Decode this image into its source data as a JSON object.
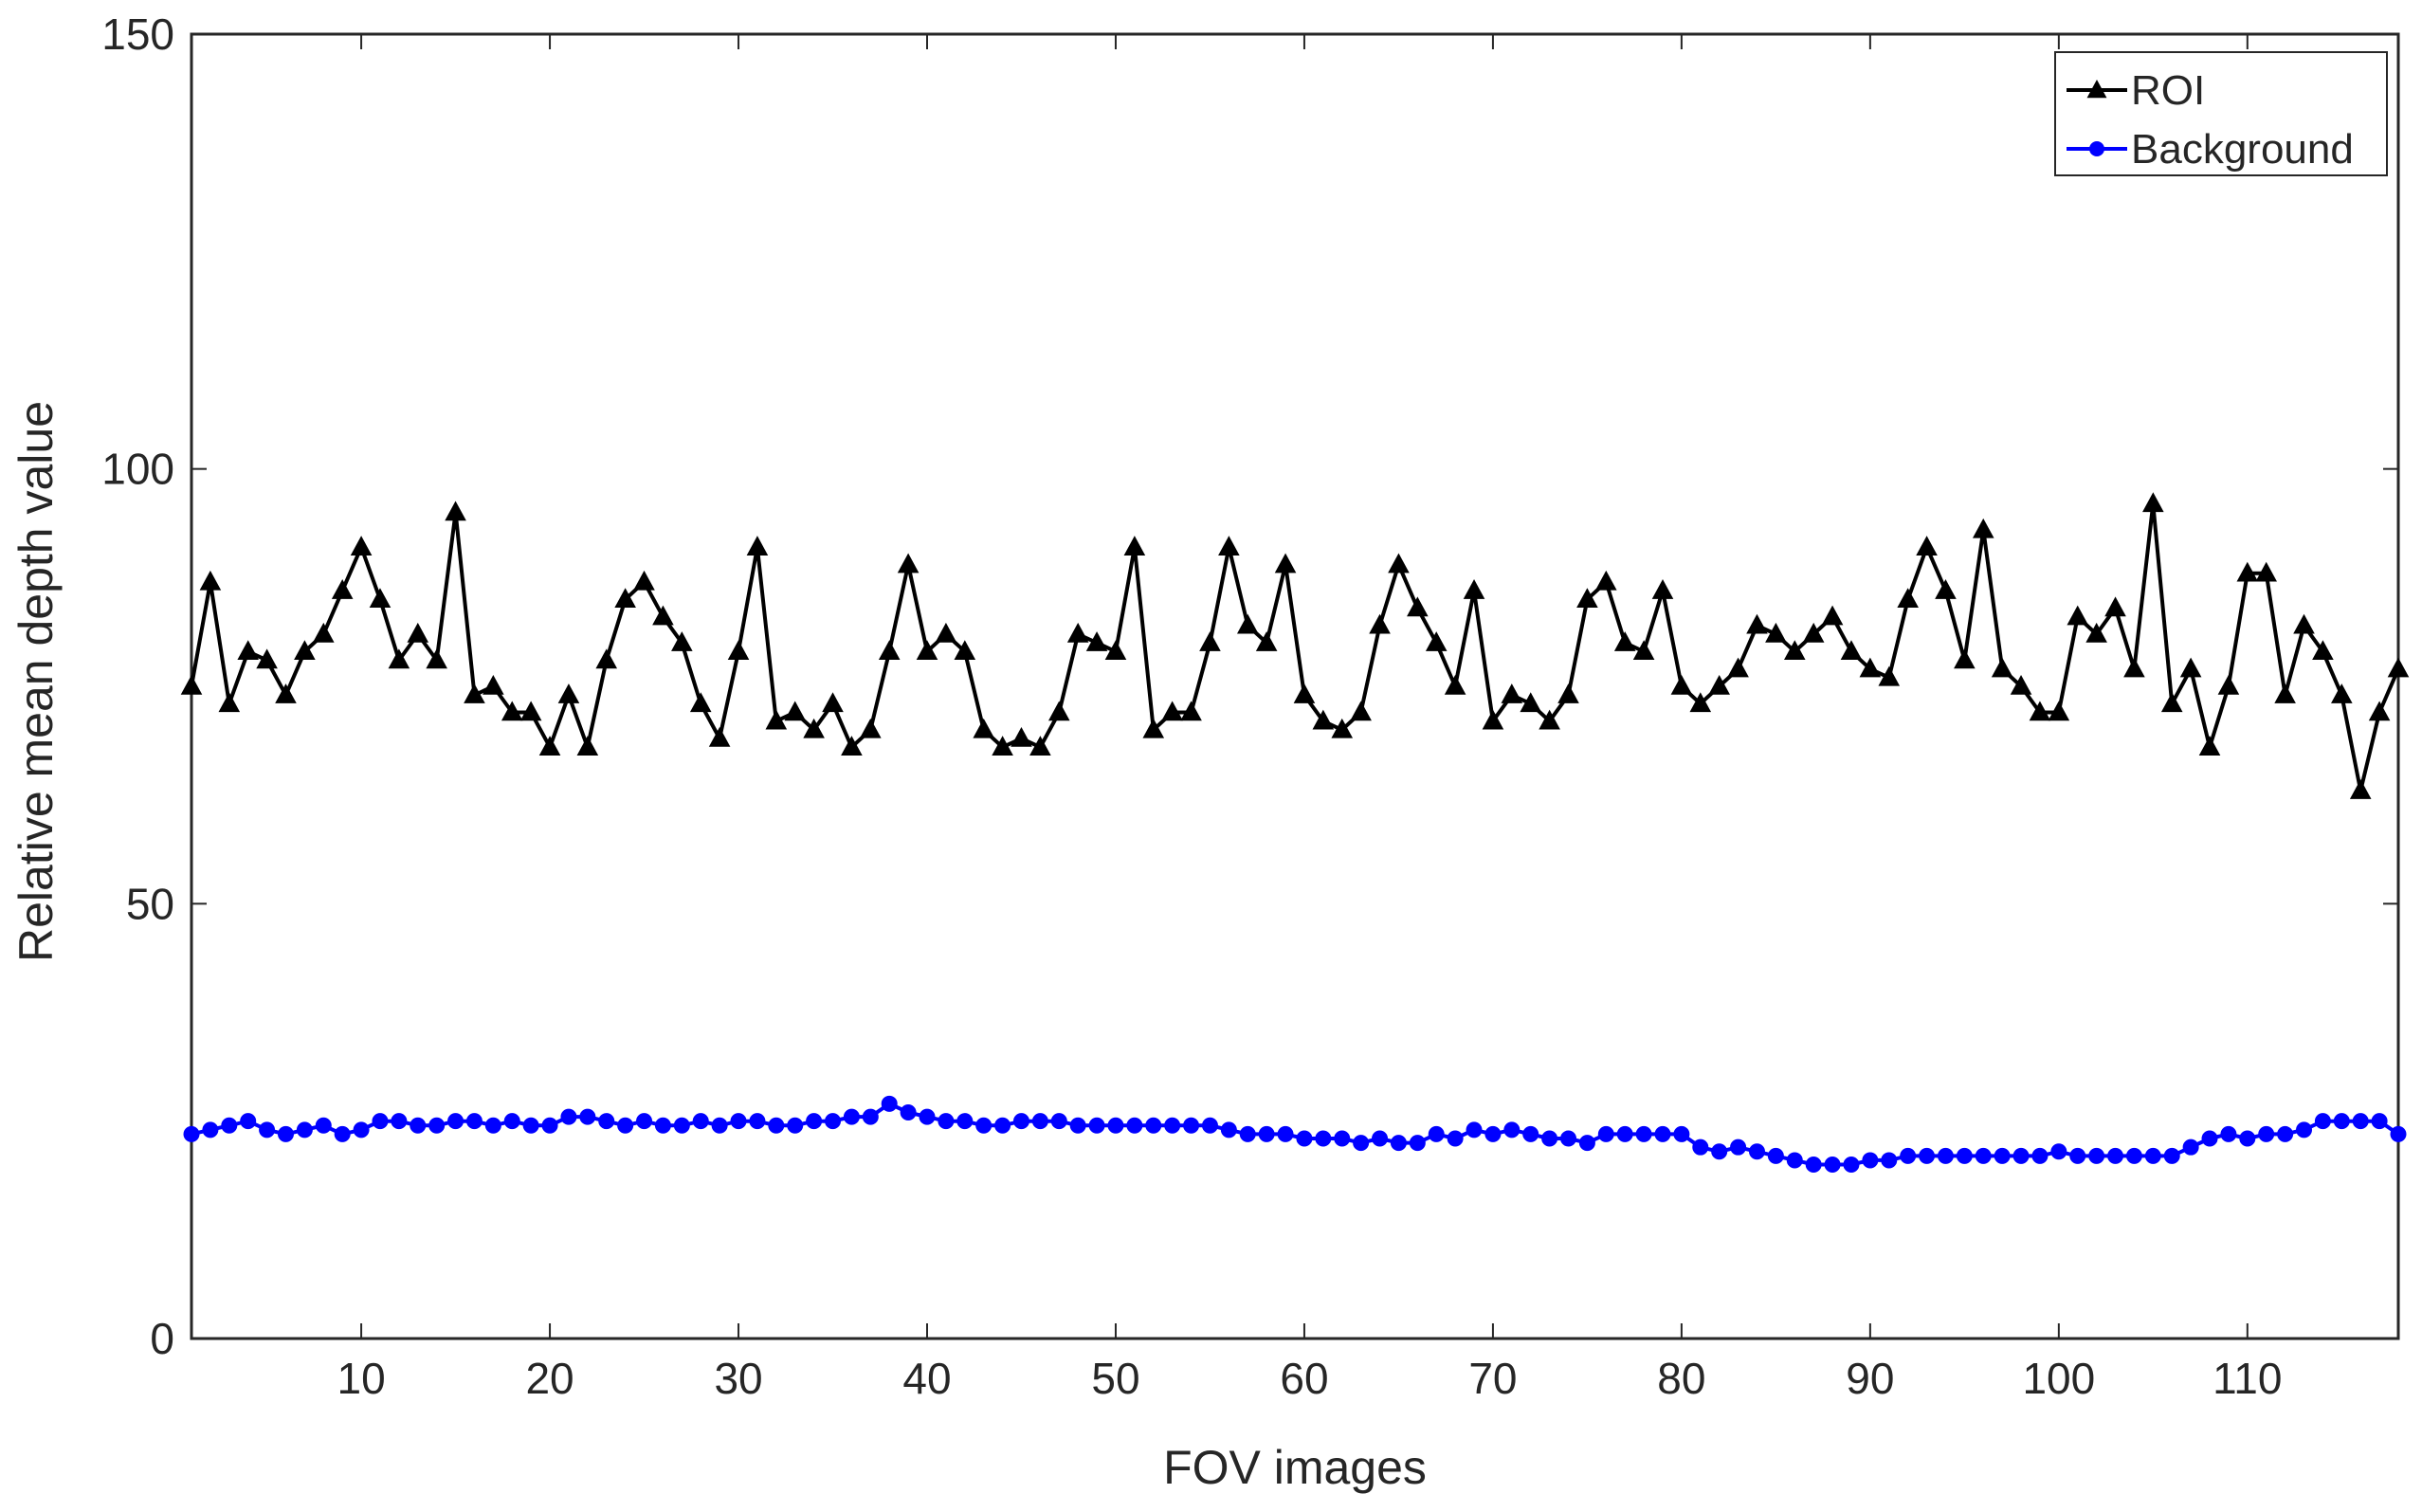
{
  "chart_data": {
    "type": "line",
    "title": "",
    "xlabel": "FOV images",
    "ylabel": "Relative mean depth value",
    "xlim": [
      1,
      118
    ],
    "ylim": [
      0,
      150
    ],
    "xticks": [
      10,
      20,
      30,
      40,
      50,
      60,
      70,
      80,
      90,
      100,
      110
    ],
    "yticks": [
      0,
      50,
      100,
      150
    ],
    "grid": false,
    "legend_position": "top-right",
    "x": [
      1,
      2,
      3,
      4,
      5,
      6,
      7,
      8,
      9,
      10,
      11,
      12,
      13,
      14,
      15,
      16,
      17,
      18,
      19,
      20,
      21,
      22,
      23,
      24,
      25,
      26,
      27,
      28,
      29,
      30,
      31,
      32,
      33,
      34,
      35,
      36,
      37,
      38,
      39,
      40,
      41,
      42,
      43,
      44,
      45,
      46,
      47,
      48,
      49,
      50,
      51,
      52,
      53,
      54,
      55,
      56,
      57,
      58,
      59,
      60,
      61,
      62,
      63,
      64,
      65,
      66,
      67,
      68,
      69,
      70,
      71,
      72,
      73,
      74,
      75,
      76,
      77,
      78,
      79,
      80,
      81,
      82,
      83,
      84,
      85,
      86,
      87,
      88,
      89,
      90,
      91,
      92,
      93,
      94,
      95,
      96,
      97,
      98,
      99,
      100,
      101,
      102,
      103,
      104,
      105,
      106,
      107,
      108,
      109,
      110,
      111,
      112,
      113,
      114,
      115,
      116,
      117,
      118
    ],
    "series": [
      {
        "name": "ROI",
        "color": "#000000",
        "marker": "triangle",
        "values": [
          75,
          87,
          73,
          79,
          78,
          74,
          79,
          81,
          86,
          91,
          85,
          78,
          81,
          78,
          95,
          74,
          75,
          72,
          72,
          68,
          74,
          68,
          78,
          85,
          87,
          83,
          80,
          73,
          69,
          79,
          91,
          71,
          72,
          70,
          73,
          68,
          70,
          79,
          89,
          79,
          81,
          79,
          70,
          68,
          69,
          68,
          72,
          81,
          80,
          79,
          91,
          70,
          72,
          72,
          80,
          91,
          82,
          80,
          89,
          74,
          71,
          70,
          72,
          82,
          89,
          84,
          80,
          75,
          86,
          71,
          74,
          73,
          71,
          74,
          85,
          87,
          80,
          79,
          86,
          75,
          73,
          75,
          77,
          82,
          81,
          79,
          81,
          83,
          79,
          77,
          76,
          85,
          91,
          86,
          78,
          93,
          77,
          75,
          72,
          72,
          83,
          81,
          84,
          77,
          96,
          73,
          77,
          68,
          75,
          88,
          88,
          74,
          82,
          79,
          74,
          63,
          72,
          77
        ]
      },
      {
        "name": "Background",
        "color": "#0000ff",
        "marker": "circle",
        "values": [
          23.5,
          24,
          24.5,
          25,
          24,
          23.5,
          24,
          24.5,
          23.5,
          24,
          25,
          25,
          24.5,
          24.5,
          25,
          25,
          24.5,
          25,
          24.5,
          24.5,
          25.5,
          25.5,
          25,
          24.5,
          25,
          24.5,
          24.5,
          25,
          24.5,
          25,
          25,
          24.5,
          24.5,
          25,
          25,
          25.5,
          25.5,
          27,
          26,
          25.5,
          25,
          25,
          24.5,
          24.5,
          25,
          25,
          25,
          24.5,
          24.5,
          24.5,
          24.5,
          24.5,
          24.5,
          24.5,
          24.5,
          24,
          23.5,
          23.5,
          23.5,
          23,
          23,
          23,
          22.5,
          23,
          22.5,
          22.5,
          23.5,
          23,
          24,
          23.5,
          24,
          23.5,
          23,
          23,
          22.5,
          23.5,
          23.5,
          23.5,
          23.5,
          23.5,
          22,
          21.5,
          22,
          21.5,
          21,
          20.5,
          20,
          20,
          20,
          20.5,
          20.5,
          21,
          21,
          21,
          21,
          21,
          21,
          21,
          21,
          21.5,
          21,
          21,
          21,
          21,
          21,
          21,
          22,
          23,
          23.5,
          23,
          23.5,
          23.5,
          24,
          25,
          25,
          25,
          25,
          23.5
        ]
      }
    ]
  }
}
